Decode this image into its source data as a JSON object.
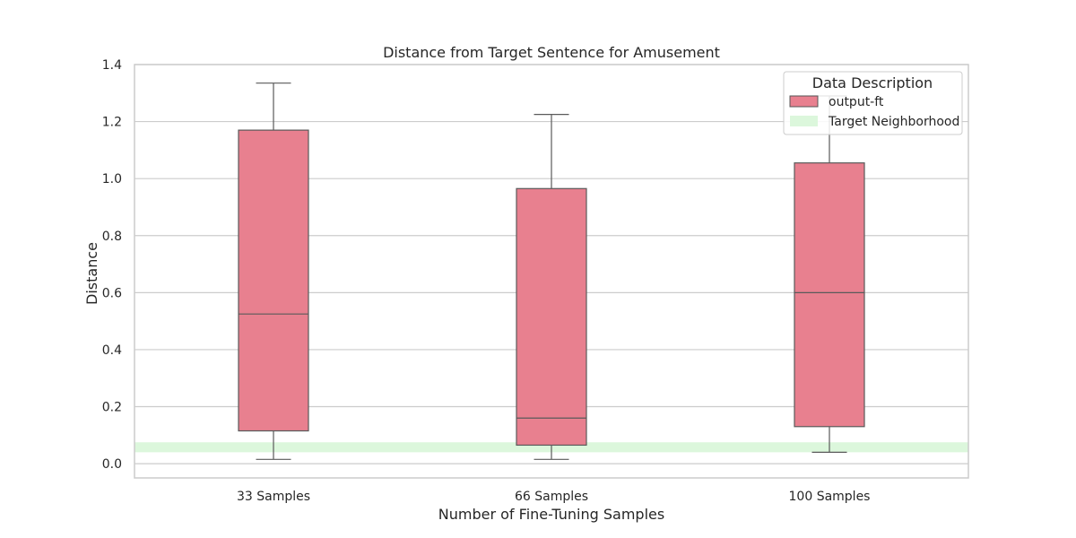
{
  "chart_data": {
    "type": "box",
    "title": "Distance from Target Sentence for Amusement",
    "xlabel": "Number of Fine-Tuning Samples",
    "ylabel": "Distance",
    "ylim": [
      -0.05,
      1.4
    ],
    "yticks": [
      "0.0",
      "0.2",
      "0.4",
      "0.6",
      "0.8",
      "1.0",
      "1.2",
      "1.4"
    ],
    "categories": [
      "33 Samples",
      "66 Samples",
      "100 Samples"
    ],
    "series": [
      {
        "name": "output-ft",
        "color": "#e8808f",
        "boxes": [
          {
            "whisker_low": 0.015,
            "q1": 0.115,
            "median": 0.525,
            "q3": 1.17,
            "whisker_high": 1.335
          },
          {
            "whisker_low": 0.015,
            "q1": 0.065,
            "median": 0.16,
            "q3": 0.965,
            "whisker_high": 1.225
          },
          {
            "whisker_low": 0.04,
            "q1": 0.13,
            "median": 0.6,
            "q3": 1.055,
            "whisker_high": 1.29
          }
        ]
      }
    ],
    "target_band": {
      "name": "Target Neighborhood",
      "low": 0.04,
      "high": 0.075,
      "color": "#dcf7dc"
    },
    "grid": true,
    "legend": {
      "title": "Data Description",
      "placement": "top-right"
    }
  }
}
